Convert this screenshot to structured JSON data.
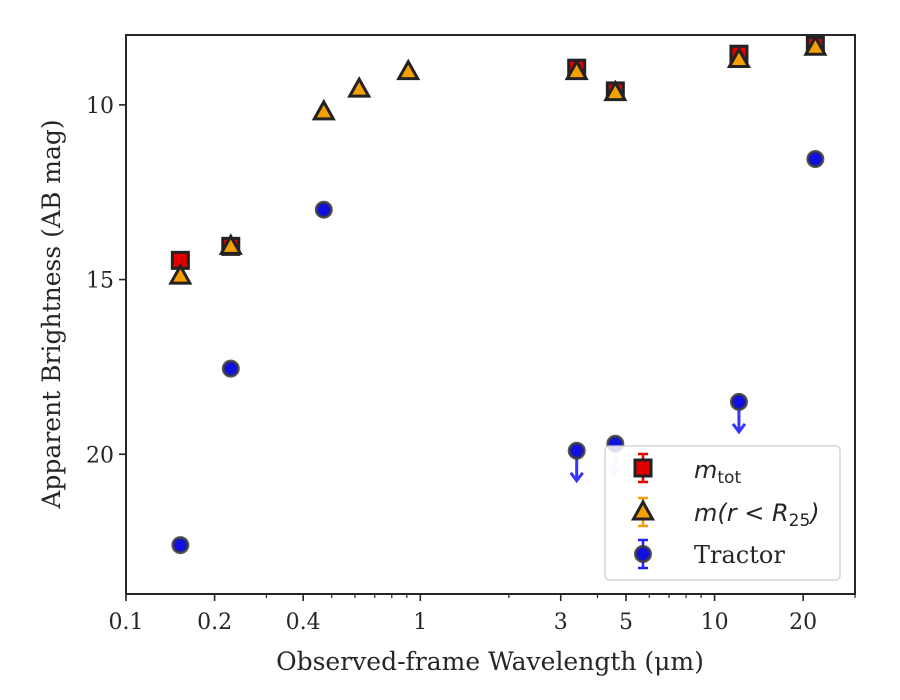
{
  "chart_data": {
    "type": "scatter",
    "title": "",
    "xlabel": "Observed-frame Wavelength (μm)",
    "ylabel": "Apparent Brightness (AB mag)",
    "xscale": "log",
    "xlim": [
      0.1,
      30
    ],
    "ylim": [
      24,
      8
    ],
    "y_inverted": true,
    "grid": false,
    "legend_position": "lower-right",
    "x_ticks": [
      {
        "value": 0.1,
        "label": "0.1"
      },
      {
        "value": 0.2,
        "label": "0.2"
      },
      {
        "value": 0.4,
        "label": "0.4"
      },
      {
        "value": 1,
        "label": "1"
      },
      {
        "value": 3,
        "label": "3"
      },
      {
        "value": 5,
        "label": "5"
      },
      {
        "value": 10,
        "label": "10"
      },
      {
        "value": 20,
        "label": "20"
      }
    ],
    "y_ticks": [
      {
        "value": 10,
        "label": "10"
      },
      {
        "value": 15,
        "label": "15"
      },
      {
        "value": 20,
        "label": "20"
      }
    ],
    "series": [
      {
        "name": "m_tot",
        "legend_main": "m",
        "legend_sub": "tot",
        "marker": "square",
        "color": "#e00000",
        "edge": "#222222",
        "points": [
          {
            "x": 0.153,
            "y": 14.45
          },
          {
            "x": 0.227,
            "y": 14.05
          },
          {
            "x": 3.4,
            "y": 8.95
          },
          {
            "x": 4.6,
            "y": 9.6
          },
          {
            "x": 12.1,
            "y": 8.55
          },
          {
            "x": 22.0,
            "y": 8.3
          }
        ]
      },
      {
        "name": "m(r < R25)",
        "legend_main": "m(r < R",
        "legend_sub": "25",
        "legend_close": ")",
        "marker": "triangle",
        "color": "#f5a000",
        "edge": "#222222",
        "points": [
          {
            "x": 0.153,
            "y": 14.9
          },
          {
            "x": 0.227,
            "y": 14.05
          },
          {
            "x": 0.47,
            "y": 10.2
          },
          {
            "x": 0.62,
            "y": 9.55
          },
          {
            "x": 0.91,
            "y": 9.05
          },
          {
            "x": 3.4,
            "y": 9.05
          },
          {
            "x": 4.6,
            "y": 9.65
          },
          {
            "x": 12.1,
            "y": 8.7
          },
          {
            "x": 22.0,
            "y": 8.35
          }
        ]
      },
      {
        "name": "Tractor",
        "legend_main": "Tractor",
        "marker": "circle",
        "color": "#1010e0",
        "edge": "#3a3a3a",
        "points": [
          {
            "x": 0.153,
            "y": 22.6,
            "upper_limit": false
          },
          {
            "x": 0.227,
            "y": 17.55,
            "upper_limit": false
          },
          {
            "x": 0.47,
            "y": 13.0,
            "upper_limit": false
          },
          {
            "x": 3.4,
            "y": 19.9,
            "upper_limit": true
          },
          {
            "x": 4.6,
            "y": 19.7,
            "upper_limit": true
          },
          {
            "x": 12.1,
            "y": 18.5,
            "upper_limit": true
          },
          {
            "x": 22.0,
            "y": 11.55,
            "upper_limit": false
          }
        ]
      }
    ]
  }
}
